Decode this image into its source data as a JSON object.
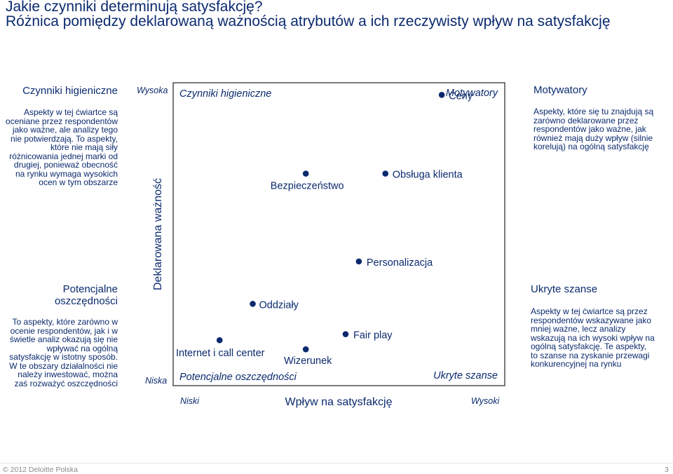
{
  "header": {
    "title": "Jakie czynniki determinują satysfakcję?",
    "subtitle": "Różnica pomiędzy deklarowaną ważnością atrybutów a ich rzeczywisty wpływ na satysfakcję"
  },
  "left_panel": {
    "top_heading": "Czynniki higieniczne",
    "top_text": "Aspekty w tej ćwiartce są oceniane przez respondentów jako ważne, ale analizy tego nie potwierdzają. To aspekty, które nie mają siły różnicowania jednej marki od drugiej, ponieważ obecność na rynku wymaga wysokich ocen w tym obszarze",
    "bottom_heading": "Potencjalne oszczędności",
    "bottom_text": "To aspekty, które zarówno w ocenie respondentów, jak i w świetle analiz okazują się nie wpływać na ogólną satysfakcję w istotny sposób. W te obszary działalności nie należy inwestować, można zaś rozważyć oszczędności"
  },
  "right_panel": {
    "top_heading": "Motywatory",
    "top_text": "Aspekty, które się tu znajdują są zarówno deklarowane przez respondentów jako ważne, jak również mają duży wpływ (silnie korelują) na ogólną satysfakcję",
    "bottom_heading": "Ukryte szanse",
    "bottom_text": "Aspekty w tej ćwiartce są przez respondentów wskazywane jako mniej ważne, lecz analizy wskazują na ich wysoki wpływ na ogólną satysfakcję. Te aspekty, to szanse na zyskanie przewagi konkurencyjnej na rynku"
  },
  "chart_data": {
    "type": "scatter",
    "title": "",
    "xlabel": "Wpływ na satysfakcję",
    "ylabel": "Deklarowana ważność",
    "x_tick_low": "Niski",
    "x_tick_high": "Wysoki",
    "y_tick_high": "Wysoka",
    "y_tick_low": "Niska",
    "xlim": [
      0,
      100
    ],
    "ylim": [
      0,
      100
    ],
    "grid": false,
    "quadrant_labels": {
      "top_left": "Czynniki higieniczne",
      "top_right": "Motywatory",
      "bottom_left": "Potencjalne oszczędności",
      "bottom_right": "Ukryte szanse"
    },
    "points": [
      {
        "label": "Ceny",
        "x": 81,
        "y": 96
      },
      {
        "label": "Obsługa klienta",
        "x": 64,
        "y": 70
      },
      {
        "label": "Bezpieczeństwo",
        "x": 40,
        "y": 70
      },
      {
        "label": "Personalizacja",
        "x": 56,
        "y": 41
      },
      {
        "label": "Oddziały",
        "x": 24,
        "y": 27
      },
      {
        "label": "Fair play",
        "x": 52,
        "y": 17
      },
      {
        "label": "Internet i call center",
        "x": 14,
        "y": 15
      },
      {
        "label": "Wizerunek",
        "x": 40,
        "y": 12
      }
    ],
    "point_color": "#0b2a6e"
  },
  "footer": {
    "copyright": "© 2012 Deloitte Polska",
    "page_number": "3"
  }
}
